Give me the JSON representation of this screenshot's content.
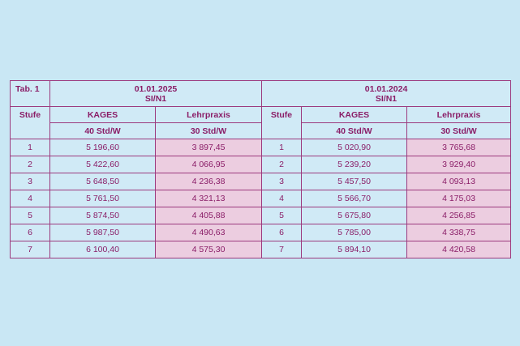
{
  "table": {
    "tab_label": "Tab. 1",
    "periods": [
      {
        "date": "01.01.2025",
        "scheme": "SI/N1",
        "col_kages": "KAGES",
        "col_lehrpraxis": "Lehrpraxis",
        "hours_kages": "40 Std/W",
        "hours_lehrpraxis": "30 Std/W"
      },
      {
        "date": "01.01.2024",
        "scheme": "SI/N1",
        "col_kages": "KAGES",
        "col_lehrpraxis": "Lehrpraxis",
        "hours_kages": "40 Std/W",
        "hours_lehrpraxis": "30 Std/W"
      }
    ],
    "stufe_label": "Stufe",
    "rows": [
      {
        "stufe_2025": "1",
        "kages_2025": "5 196,60",
        "lehr_2025": "3 897,45",
        "stufe_2024": "1",
        "kages_2024": "5 020,90",
        "lehr_2024": "3 765,68"
      },
      {
        "stufe_2025": "2",
        "kages_2025": "5 422,60",
        "lehr_2025": "4 066,95",
        "stufe_2024": "2",
        "kages_2024": "5 239,20",
        "lehr_2024": "3 929,40"
      },
      {
        "stufe_2025": "3",
        "kages_2025": "5 648,50",
        "lehr_2025": "4 236,38",
        "stufe_2024": "3",
        "kages_2024": "5 457,50",
        "lehr_2024": "4 093,13"
      },
      {
        "stufe_2025": "4",
        "kages_2025": "5 761,50",
        "lehr_2025": "4 321,13",
        "stufe_2024": "4",
        "kages_2024": "5 566,70",
        "lehr_2024": "4 175,03"
      },
      {
        "stufe_2025": "5",
        "kages_2025": "5 874,50",
        "lehr_2025": "4 405,88",
        "stufe_2024": "5",
        "kages_2024": "5 675,80",
        "lehr_2024": "4 256,85"
      },
      {
        "stufe_2025": "6",
        "kages_2025": "5 987,50",
        "lehr_2025": "4 490,63",
        "stufe_2024": "6",
        "kages_2024": "5 785,00",
        "lehr_2024": "4 338,75"
      },
      {
        "stufe_2025": "7",
        "kages_2025": "6 100,40",
        "lehr_2025": "4 575,30",
        "stufe_2024": "7",
        "kages_2024": "5 894,10",
        "lehr_2024": "4 420,58"
      }
    ]
  },
  "colors": {
    "background": "#c9e7f4",
    "text": "#8a1d67",
    "border": "#9c3a7e",
    "lehrpraxis_fill": "#eccde0"
  }
}
